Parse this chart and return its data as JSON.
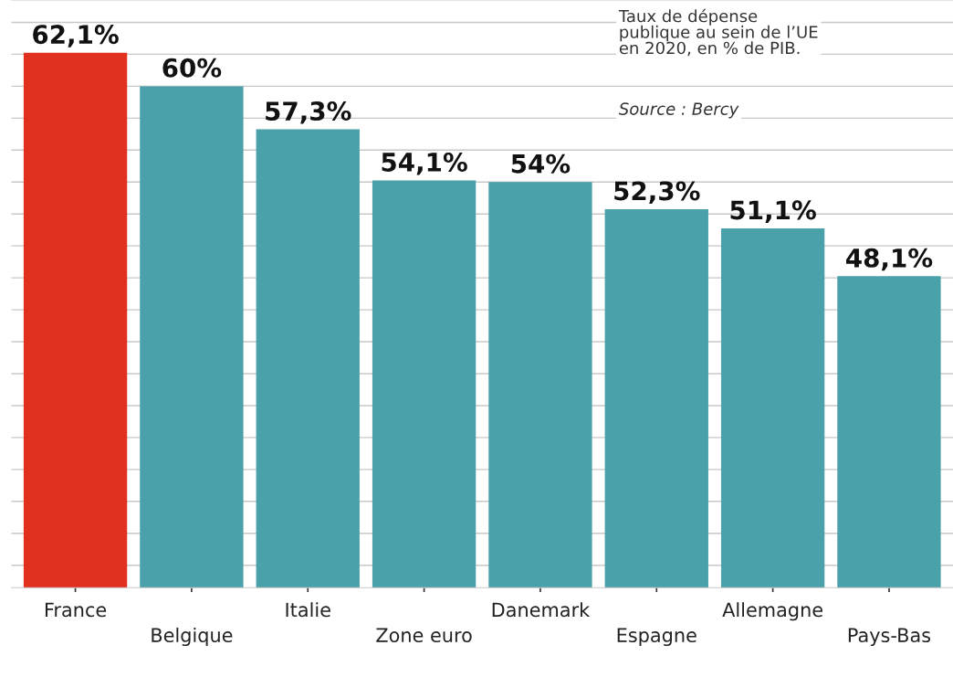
{
  "chart_data": {
    "type": "bar",
    "categories": [
      "France",
      "Belgique",
      "Italie",
      "Zone euro",
      "Danemark",
      "Espagne",
      "Allemagne",
      "Pays-Bas"
    ],
    "values": [
      62.1,
      60,
      57.3,
      54.1,
      54,
      52.3,
      51.1,
      48.1
    ],
    "colors": [
      "#e2301f",
      "#4aa1a9",
      "#4aa1a9",
      "#4aa1a9",
      "#4aa1a9",
      "#4aa1a9",
      "#4aa1a9",
      "#4aa1a9"
    ],
    "value_labels": [
      "62,1%",
      "60%",
      "57,3%",
      "54,1%",
      "54%",
      "52,3%",
      "51,1%",
      "48,1%"
    ],
    "ylim": [
      28.6,
      65.4
    ],
    "yticks": [
      {
        "value": 30,
        "label": null
      },
      {
        "value": 32,
        "label": null
      },
      {
        "value": 34,
        "label": null
      },
      {
        "value": 36,
        "label": null
      },
      {
        "value": 38,
        "label": null
      },
      {
        "value": 40,
        "label": null
      },
      {
        "value": 42,
        "label": null
      },
      {
        "value": 44,
        "label": null
      },
      {
        "value": 46,
        "label": null
      },
      {
        "value": 48,
        "label": null
      },
      {
        "value": 50,
        "label": null
      },
      {
        "value": 52,
        "label": null
      },
      {
        "value": 54,
        "label": null
      },
      {
        "value": 56,
        "label": null
      },
      {
        "value": 58,
        "label": null
      },
      {
        "value": 60,
        "label": null
      },
      {
        "value": 62,
        "label": null
      },
      {
        "value": 64,
        "label": null
      }
    ],
    "tick_labels": "x",
    "grid": "y",
    "annotations": [
      "Taux de dépense\npublique au sein de l’UE\nen 2020, en % de PIB.",
      "Source : Bercy"
    ]
  }
}
